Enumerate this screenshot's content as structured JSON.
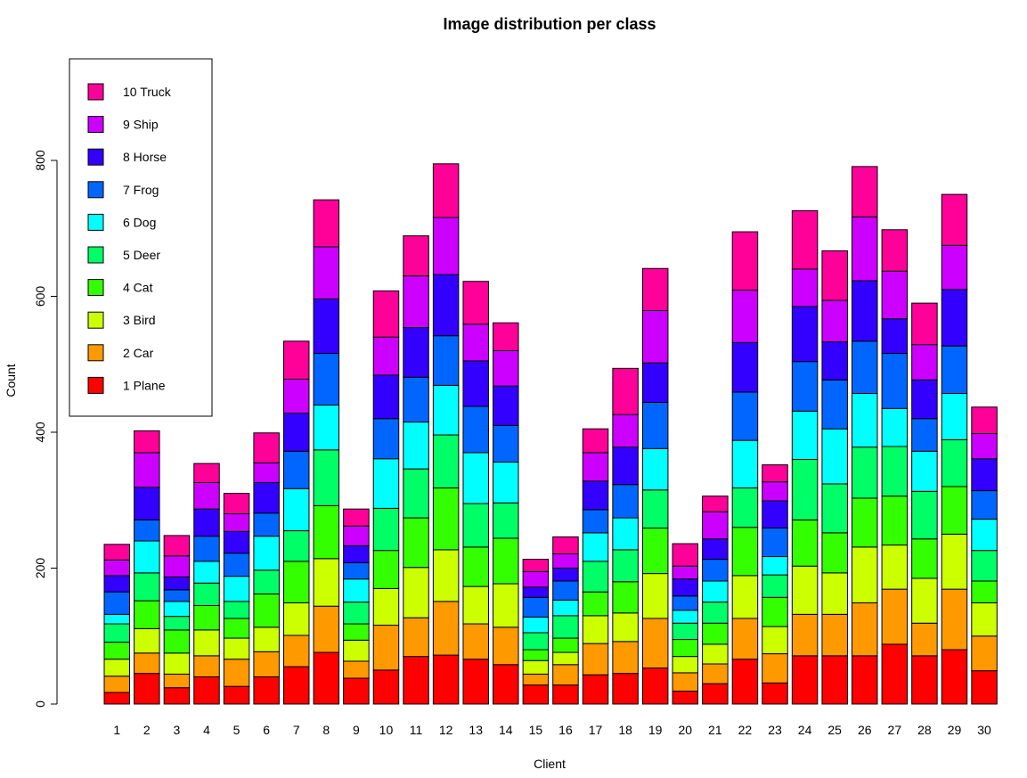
{
  "chart_data": {
    "type": "bar",
    "stacked": true,
    "title": "Image distribution per class",
    "xlabel": "Client",
    "ylabel": "Count",
    "ylim": [
      0,
      920
    ],
    "yticks": [
      0,
      200,
      400,
      600,
      800
    ],
    "legend_position": "top-left",
    "grid": false,
    "categories": [
      "1",
      "2",
      "3",
      "4",
      "5",
      "6",
      "7",
      "8",
      "9",
      "10",
      "11",
      "12",
      "13",
      "14",
      "15",
      "16",
      "17",
      "18",
      "19",
      "20",
      "21",
      "22",
      "23",
      "24",
      "25",
      "26",
      "27",
      "28",
      "29",
      "30"
    ],
    "series": [
      {
        "name": "1 Plane",
        "color": "#FF0000",
        "values": [
          17,
          45,
          24,
          40,
          26,
          40,
          55,
          76,
          38,
          50,
          70,
          72,
          66,
          58,
          28,
          28,
          43,
          45,
          53,
          19,
          30,
          66,
          31,
          71,
          71,
          71,
          88,
          71,
          80,
          49
        ]
      },
      {
        "name": "2 Car",
        "color": "#FF9900",
        "values": [
          24,
          30,
          20,
          31,
          40,
          37,
          46,
          68,
          25,
          66,
          57,
          79,
          52,
          55,
          16,
          30,
          46,
          47,
          73,
          27,
          29,
          60,
          43,
          61,
          61,
          78,
          81,
          48,
          89,
          51
        ]
      },
      {
        "name": "3 Bird",
        "color": "#CCFF00",
        "values": [
          25,
          36,
          31,
          38,
          31,
          36,
          48,
          70,
          31,
          54,
          74,
          76,
          55,
          64,
          20,
          18,
          41,
          42,
          66,
          24,
          29,
          63,
          40,
          71,
          61,
          82,
          65,
          66,
          81,
          49
        ]
      },
      {
        "name": "4 Cat",
        "color": "#33FF00",
        "values": [
          25,
          41,
          34,
          36,
          29,
          49,
          61,
          78,
          24,
          56,
          73,
          91,
          58,
          67,
          16,
          21,
          35,
          46,
          67,
          25,
          31,
          71,
          43,
          68,
          59,
          72,
          72,
          58,
          70,
          32
        ]
      },
      {
        "name": "5 Deer",
        "color": "#00FF66",
        "values": [
          27,
          41,
          20,
          33,
          25,
          35,
          45,
          82,
          32,
          62,
          72,
          78,
          64,
          52,
          25,
          33,
          45,
          47,
          56,
          24,
          31,
          58,
          33,
          89,
          72,
          75,
          73,
          70,
          69,
          45
        ]
      },
      {
        "name": "6 Dog",
        "color": "#00FFFF",
        "values": [
          14,
          47,
          22,
          32,
          37,
          50,
          62,
          66,
          34,
          73,
          69,
          73,
          75,
          60,
          23,
          23,
          42,
          47,
          61,
          19,
          31,
          70,
          27,
          71,
          81,
          79,
          56,
          59,
          68,
          46
        ]
      },
      {
        "name": "7 Frog",
        "color": "#0066FF",
        "values": [
          33,
          31,
          17,
          37,
          34,
          34,
          55,
          76,
          24,
          59,
          66,
          73,
          68,
          54,
          29,
          28,
          34,
          49,
          68,
          21,
          32,
          71,
          42,
          73,
          72,
          77,
          81,
          48,
          70,
          42
        ]
      },
      {
        "name": "8 Horse",
        "color": "#3300FF",
        "values": [
          24,
          48,
          19,
          40,
          32,
          45,
          56,
          80,
          25,
          64,
          73,
          90,
          67,
          58,
          15,
          19,
          42,
          55,
          58,
          25,
          30,
          73,
          40,
          81,
          56,
          89,
          51,
          57,
          83,
          47
        ]
      },
      {
        "name": "9 Ship",
        "color": "#CC00FF",
        "values": [
          23,
          51,
          31,
          39,
          26,
          29,
          50,
          77,
          29,
          56,
          76,
          84,
          54,
          52,
          23,
          21,
          42,
          48,
          77,
          19,
          40,
          77,
          28,
          55,
          61,
          94,
          70,
          52,
          65,
          37
        ]
      },
      {
        "name": "10 Truck",
        "color": "#FF0099",
        "values": [
          23,
          32,
          30,
          28,
          30,
          44,
          56,
          69,
          25,
          68,
          59,
          79,
          63,
          41,
          18,
          25,
          35,
          68,
          62,
          33,
          23,
          86,
          25,
          86,
          73,
          74,
          61,
          61,
          75,
          39
        ]
      }
    ],
    "legend_order": [
      "10 Truck",
      "9 Ship",
      "8 Horse",
      "7 Frog",
      "6 Dog",
      "5 Deer",
      "4 Cat",
      "3 Bird",
      "2 Car",
      "1 Plane"
    ]
  }
}
